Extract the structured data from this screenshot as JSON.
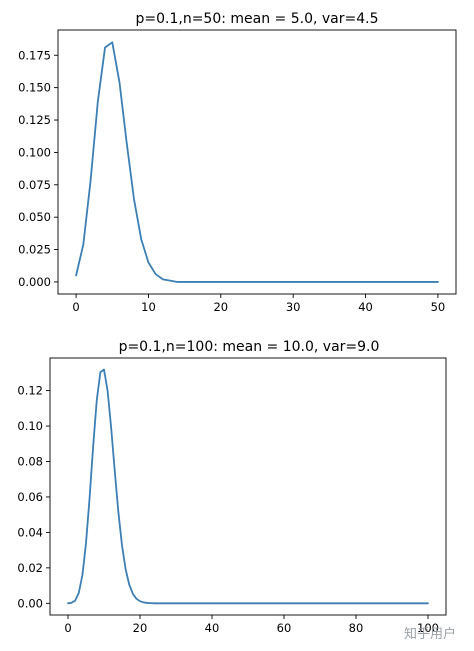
{
  "chart_data": [
    {
      "type": "line",
      "title": "p=0.1,n=50: mean = 5.0, var=4.5",
      "xlabel": "",
      "ylabel": "",
      "xlim": [
        -2.5,
        52.5
      ],
      "ylim": [
        -0.0093,
        0.1945
      ],
      "xticks": [
        0,
        10,
        20,
        30,
        40,
        50
      ],
      "yticks": [
        0.0,
        0.025,
        0.05,
        0.075,
        0.1,
        0.125,
        0.15,
        0.175
      ],
      "ytick_labels": [
        "0.000",
        "0.025",
        "0.050",
        "0.075",
        "0.100",
        "0.125",
        "0.150",
        "0.175"
      ],
      "grid": false,
      "color": "#3b7fb4",
      "series": [
        {
          "x": [
            0,
            1,
            2,
            3,
            4,
            5,
            6,
            7,
            8,
            9,
            10,
            11,
            12,
            13,
            14,
            15,
            16,
            17,
            18,
            19,
            20,
            21,
            22,
            23,
            24,
            25,
            26,
            27,
            28,
            29,
            30,
            31,
            32,
            33,
            34,
            35,
            36,
            37,
            38,
            39,
            40,
            41,
            42,
            43,
            44,
            45,
            46,
            47,
            48,
            49,
            50
          ],
          "values": [
            0.005,
            0.029,
            0.078,
            0.139,
            0.181,
            0.185,
            0.154,
            0.107,
            0.064,
            0.033,
            0.015,
            0.006,
            0.002,
            0.001,
            0.0,
            0.0,
            0.0,
            0.0,
            0.0,
            0.0,
            0.0,
            0.0,
            0.0,
            0.0,
            0.0,
            0.0,
            0.0,
            0.0,
            0.0,
            0.0,
            0.0,
            0.0,
            0.0,
            0.0,
            0.0,
            0.0,
            0.0,
            0.0,
            0.0,
            0.0,
            0.0,
            0.0,
            0.0,
            0.0,
            0.0,
            0.0,
            0.0,
            0.0,
            0.0,
            0.0,
            0.0
          ]
        }
      ]
    },
    {
      "type": "line",
      "title": "p=0.1,n=100: mean = 10.0, var=9.0",
      "xlabel": "",
      "ylabel": "",
      "xlim": [
        -5,
        105
      ],
      "ylim": [
        -0.0066,
        0.1384
      ],
      "xticks": [
        0,
        20,
        40,
        60,
        80,
        100
      ],
      "yticks": [
        0.0,
        0.02,
        0.04,
        0.06,
        0.08,
        0.1,
        0.12
      ],
      "ytick_labels": [
        "0.00",
        "0.02",
        "0.04",
        "0.06",
        "0.08",
        "0.10",
        "0.12"
      ],
      "grid": false,
      "color": "#3b7fb4",
      "series": [
        {
          "x": [
            0,
            1,
            2,
            3,
            4,
            5,
            6,
            7,
            8,
            9,
            10,
            11,
            12,
            13,
            14,
            15,
            16,
            17,
            18,
            19,
            20,
            21,
            22,
            23,
            24,
            25,
            26,
            27,
            28,
            29,
            30,
            31,
            32,
            33,
            34,
            35,
            36,
            37,
            38,
            39,
            40,
            41,
            42,
            43,
            44,
            45,
            46,
            47,
            48,
            49,
            50,
            51,
            52,
            53,
            54,
            55,
            56,
            57,
            58,
            59,
            60,
            61,
            62,
            63,
            64,
            65,
            66,
            67,
            68,
            69,
            70,
            71,
            72,
            73,
            74,
            75,
            76,
            77,
            78,
            79,
            80,
            81,
            82,
            83,
            84,
            85,
            86,
            87,
            88,
            89,
            90,
            91,
            92,
            93,
            94,
            95,
            96,
            97,
            98,
            99,
            100
          ],
          "values": [
            0.0,
            0.0003,
            0.0016,
            0.0059,
            0.0159,
            0.0339,
            0.0596,
            0.0889,
            0.1148,
            0.1304,
            0.1319,
            0.1199,
            0.0988,
            0.0743,
            0.0513,
            0.0327,
            0.0193,
            0.0106,
            0.0054,
            0.0026,
            0.0012,
            0.0005,
            0.0002,
            0.0001,
            0.0,
            0.0,
            0.0,
            0.0,
            0.0,
            0.0,
            0.0,
            0.0,
            0.0,
            0.0,
            0.0,
            0.0,
            0.0,
            0.0,
            0.0,
            0.0,
            0.0,
            0.0,
            0.0,
            0.0,
            0.0,
            0.0,
            0.0,
            0.0,
            0.0,
            0.0,
            0.0,
            0.0,
            0.0,
            0.0,
            0.0,
            0.0,
            0.0,
            0.0,
            0.0,
            0.0,
            0.0,
            0.0,
            0.0,
            0.0,
            0.0,
            0.0,
            0.0,
            0.0,
            0.0,
            0.0,
            0.0,
            0.0,
            0.0,
            0.0,
            0.0,
            0.0,
            0.0,
            0.0,
            0.0,
            0.0,
            0.0,
            0.0,
            0.0,
            0.0,
            0.0,
            0.0,
            0.0,
            0.0,
            0.0,
            0.0,
            0.0,
            0.0,
            0.0,
            0.0,
            0.0,
            0.0,
            0.0,
            0.0,
            0.0,
            0.0,
            0.0
          ]
        }
      ]
    }
  ],
  "watermark": "知乎用户"
}
